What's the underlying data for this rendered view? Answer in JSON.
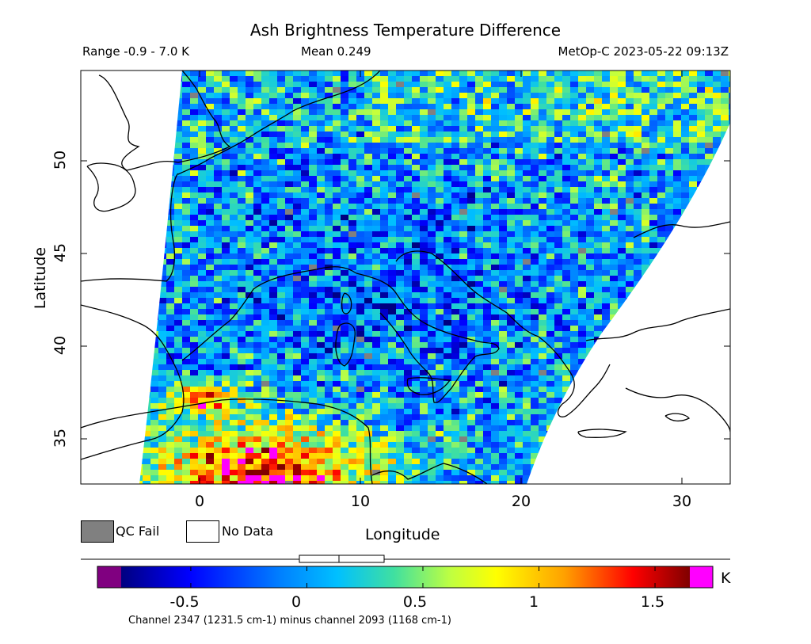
{
  "header": {
    "title": "Ash Brightness Temperature Difference",
    "range": "Range -0.9 - 7.0 K",
    "mean": "Mean 0.249",
    "satellite_time": "MetOp-C 2023-05-22 09:13Z"
  },
  "map": {
    "lon_range": [
      -7.3,
      33.0
    ],
    "lat_range": [
      32.5,
      54.7
    ],
    "x_ticks": [
      "0",
      "10",
      "20",
      "30"
    ],
    "y_ticks": [
      "50",
      "45",
      "40",
      "35"
    ],
    "xlabel": "Longitude",
    "ylabel": "Latitude",
    "field_palette": {
      "qc_fail": "#808080",
      "no_data": "#ffffff",
      "high_ash": "#ff00ff"
    }
  },
  "legend": {
    "qc_fail": {
      "label": "QC Fail",
      "color": "#808080"
    },
    "no_data": {
      "label": "No Data",
      "color": "#ffffff"
    }
  },
  "colorbar": {
    "unit": "K",
    "tick_labels": [
      "-0.5",
      "0",
      "0.5",
      "1",
      "1.5"
    ],
    "tick_values": [
      -0.5,
      0,
      0.5,
      1,
      1.5
    ],
    "min": -0.8,
    "max": 1.65,
    "under_color": "#800080",
    "over_color": "#ff00ff",
    "note": "Channel 2347 (1231.5 cm-1) minus channel 2093 (1168 cm-1)"
  }
}
